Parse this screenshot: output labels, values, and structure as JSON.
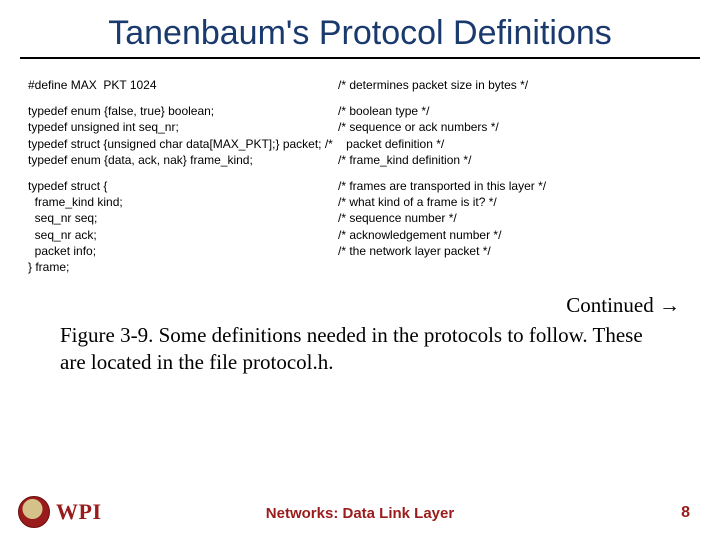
{
  "title": "Tanenbaum's  Protocol Definitions",
  "code": {
    "block1": [
      {
        "left": "#define MAX  PKT 1024",
        "right": "/* determines packet size in bytes */"
      }
    ],
    "block2": [
      {
        "left": "typedef enum {false, true} boolean;",
        "right": "/* boolean type */"
      },
      {
        "left": "typedef unsigned int seq_nr;",
        "right": "/* sequence or ack numbers */"
      },
      {
        "left": "typedef struct {unsigned char data[MAX_PKT];} packet; /*    packet definition */",
        "right": ""
      },
      {
        "left": "typedef enum {data, ack, nak} frame_kind;",
        "right": "/* frame_kind definition */"
      }
    ],
    "block3": [
      {
        "left": "typedef struct {",
        "right": "/* frames are transported in this layer */"
      },
      {
        "left": "  frame_kind kind;",
        "right": "/* what kind of a frame is it? */"
      },
      {
        "left": "  seq_nr seq;",
        "right": "/* sequence number */"
      },
      {
        "left": "  seq_nr ack;",
        "right": "/* acknowledgement number */"
      },
      {
        "left": "  packet info;",
        "right": "/* the network layer packet */"
      },
      {
        "left": "} frame;",
        "right": ""
      }
    ]
  },
  "continued": "Continued →",
  "caption": "Figure 3-9. Some definitions needed in the protocols to follow.  These are located in the file protocol.h.",
  "footer": {
    "org": "WPI",
    "center": "Networks:  Data Link Layer",
    "page": "8"
  },
  "colors": {
    "title": "#1a3a6e",
    "accent": "#9a1b1b",
    "text": "#000000",
    "bg": "#ffffff"
  },
  "typography": {
    "title_font": "Comic Sans MS",
    "title_size_pt": 26,
    "code_font": "Arial",
    "code_size_pt": 9,
    "body_font": "Times New Roman",
    "body_size_pt": 16,
    "footer_font": "Comic Sans MS",
    "footer_size_pt": 12
  }
}
